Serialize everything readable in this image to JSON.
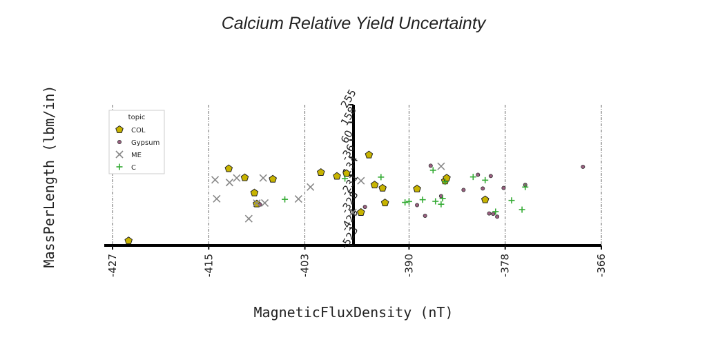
{
  "chart_data": {
    "type": "scatter",
    "title": "Calcium Relative Yield Uncertainty",
    "xlabel": "MagneticFluxDensity (nT)",
    "ylabel": "MassPerLength (lbm/in)",
    "xlim": [
      -427,
      -366
    ],
    "ylim": [
      -523,
      255
    ],
    "x_ticks": [
      -427,
      -415,
      -403,
      -390,
      -378,
      -366
    ],
    "y_ticks": [
      255,
      158,
      60,
      -36,
      -134,
      -231,
      -328,
      -426,
      -523
    ],
    "grid": "vertical dashed",
    "legend_title": "topic",
    "legend_position": "upper-left",
    "series": [
      {
        "name": "COL",
        "marker": "pentagon",
        "color": "#c8b400",
        "points": [
          [
            -425,
            -497
          ],
          [
            -412.5,
            -98
          ],
          [
            -410.5,
            -148
          ],
          [
            -409.3,
            -232
          ],
          [
            -409,
            -293
          ],
          [
            -407,
            -156
          ],
          [
            -401,
            -119
          ],
          [
            -399,
            -140
          ],
          [
            -397.8,
            -125
          ],
          [
            -396,
            -340
          ],
          [
            -395,
            -22
          ],
          [
            -394.3,
            -188
          ],
          [
            -393.3,
            -206
          ],
          [
            -393,
            -287
          ],
          [
            -389,
            -210
          ],
          [
            -385.5,
            -166
          ],
          [
            -385.3,
            -150
          ],
          [
            -380.5,
            -270
          ]
        ]
      },
      {
        "name": "Gypsum",
        "marker": "circle",
        "color": "#9a6080",
        "points": [
          [
            -408.6,
            -297
          ],
          [
            -395.5,
            -310
          ],
          [
            -389,
            -300
          ],
          [
            -388,
            -359
          ],
          [
            -387.3,
            -82
          ],
          [
            -386,
            -250
          ],
          [
            -383.2,
            -216
          ],
          [
            -381.4,
            -132
          ],
          [
            -380.8,
            -208
          ],
          [
            -380,
            -346
          ],
          [
            -379.8,
            -139
          ],
          [
            -379.5,
            -348
          ],
          [
            -379,
            -364
          ],
          [
            -378.2,
            -205
          ],
          [
            -375.5,
            -188
          ],
          [
            -368.3,
            -88
          ]
        ]
      },
      {
        "name": "ME",
        "marker": "x",
        "color": "#888888",
        "points": [
          [
            -414.2,
            -160
          ],
          [
            -414,
            -265
          ],
          [
            -412.4,
            -175
          ],
          [
            -411.5,
            -150
          ],
          [
            -410,
            -375
          ],
          [
            -409,
            -289
          ],
          [
            -408.2,
            -150
          ],
          [
            -408,
            -288
          ],
          [
            -403.8,
            -266
          ],
          [
            -402.3,
            -200
          ],
          [
            -397,
            -340
          ],
          [
            -396,
            -165
          ],
          [
            -386,
            -85
          ]
        ]
      },
      {
        "name": "C",
        "marker": "plus",
        "color": "#33aa33",
        "points": [
          [
            -405.5,
            -268
          ],
          [
            -398,
            -153
          ],
          [
            -393.5,
            -145
          ],
          [
            -390.5,
            -285
          ],
          [
            -390,
            -280
          ],
          [
            -388.3,
            -270
          ],
          [
            -387,
            -107
          ],
          [
            -386.7,
            -279
          ],
          [
            -386,
            -295
          ],
          [
            -385.8,
            -263
          ],
          [
            -385.5,
            -171
          ],
          [
            -382,
            -144
          ],
          [
            -380.5,
            -162
          ],
          [
            -379.2,
            -336
          ],
          [
            -377.2,
            -274
          ],
          [
            -375.9,
            -325
          ],
          [
            -375.5,
            -200
          ]
        ]
      }
    ]
  },
  "legend": {
    "title": "topic",
    "entries": [
      "COL",
      "Gypsum",
      "ME",
      "C"
    ]
  }
}
